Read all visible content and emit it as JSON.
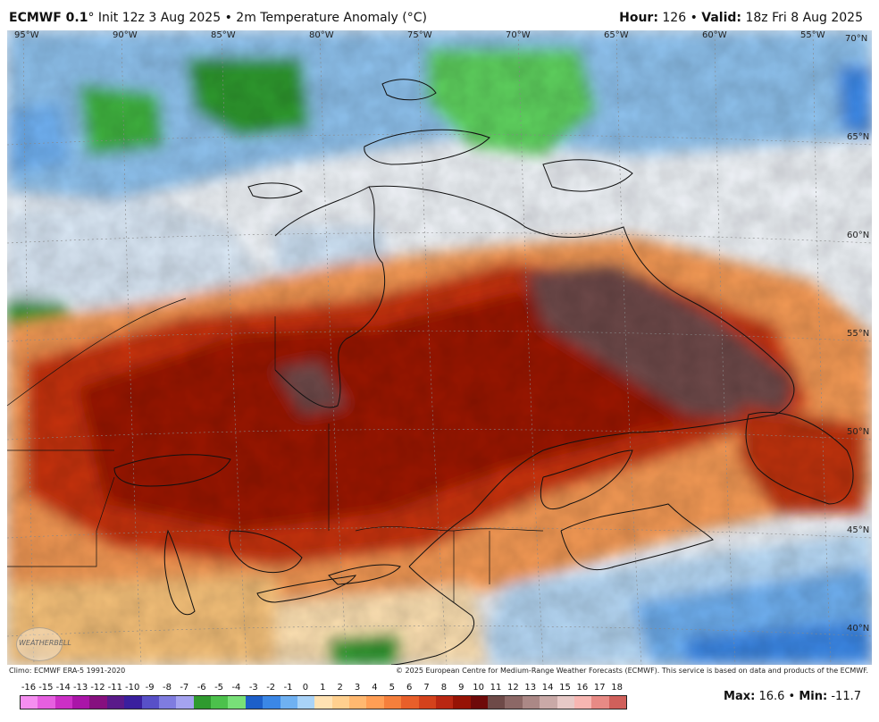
{
  "header": {
    "model": "ECMWF 0.1",
    "deg": "°",
    "init": "Init 12z 3 Aug 2025",
    "sep": "•",
    "product": "2m Temperature Anomaly (°C)",
    "hour_label": "Hour:",
    "hour": "126",
    "valid_label": "Valid:",
    "valid": "18z Fri 8 Aug 2025"
  },
  "map": {
    "region": "Northeastern North America (Quebec / Labrador / Great Lakes)",
    "lon_labels": [
      "95°W",
      "90°W",
      "85°W",
      "80°W",
      "75°W",
      "70°W",
      "65°W",
      "60°W",
      "55°W",
      "70°N"
    ],
    "lat_labels": [
      "65°N",
      "60°N",
      "55°N",
      "50°N",
      "45°N",
      "40°N"
    ],
    "anomaly_field": {
      "max": 16.6,
      "min": -11.7,
      "warm_core": "Quebec–Labrador (+14 to +18)",
      "cool_areas": [
        "Baffin/Hudson Strait region",
        "Western Atlantic south of Nova Scotia"
      ]
    }
  },
  "credits": {
    "climo": "Climo: ECMWF ERA-5 1991-2020",
    "copyright": "© 2025 European Centre for Medium-Range Weather Forecasts (ECMWF). This service is based on data and products of the ECMWF."
  },
  "logo": {
    "text": "WEATHERBELL"
  },
  "colorbar": {
    "labels": [
      "-16",
      "-15",
      "-14",
      "-13",
      "-12",
      "-11",
      "-10",
      "-9",
      "-8",
      "-7",
      "-6",
      "-5",
      "-4",
      "-3",
      "-2",
      "-1",
      "0",
      "1",
      "2",
      "3",
      "4",
      "5",
      "6",
      "7",
      "8",
      "9",
      "10",
      "11",
      "12",
      "13",
      "14",
      "15",
      "16",
      "17",
      "18"
    ],
    "colors": [
      "#f58ef0",
      "#e65fe0",
      "#cc2fc6",
      "#aa15a8",
      "#86107f",
      "#5a1a8a",
      "#3a1f9e",
      "#5850c8",
      "#7f7ce0",
      "#a5a3f0",
      "#2f9a2f",
      "#4cc14c",
      "#78e078",
      "#1d5fc9",
      "#3b87e6",
      "#6fb1f2",
      "#a9d3f8",
      "#ffe2b3",
      "#ffd08f",
      "#ffb870",
      "#ff9e55",
      "#f57f3c",
      "#e85f2a",
      "#d4421c",
      "#b92712",
      "#961305",
      "#6e0a0a",
      "#6e4a48",
      "#8c6866",
      "#ab8886",
      "#c9a9a7",
      "#e7c9c7",
      "#f7b6b2",
      "#e88a85",
      "#d0605b"
    ]
  },
  "stats": {
    "max_label": "Max:",
    "max": "16.6",
    "min_label": "Min:",
    "min": "-11.7"
  }
}
